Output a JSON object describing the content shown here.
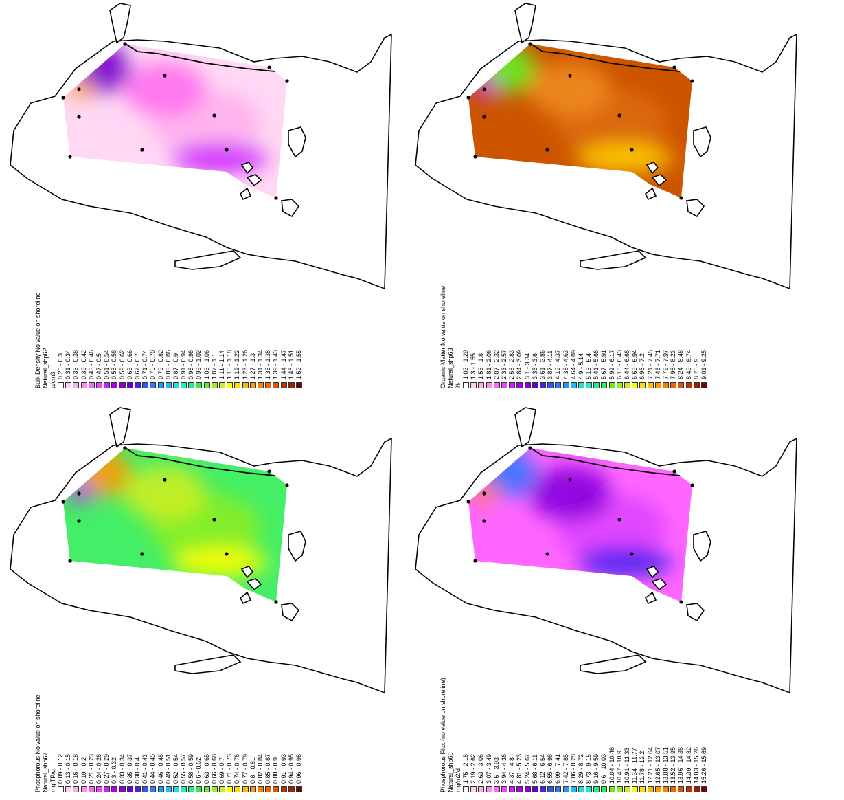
{
  "panels": [
    {
      "id": "bulk-density",
      "legend_title": "Bulk Density No value on shoreline",
      "legend_layer": "Natural_shp62",
      "legend_unit": "g/cm3",
      "classes": [
        "0.26 - 0.3",
        "0.31 - 0.34",
        "0.35 - 0.38",
        "0.39 - 0.42",
        "0.43 - 0.46",
        "0.47 - 0.5",
        "0.51 - 0.54",
        "0.55 - 0.58",
        "0.59 - 0.62",
        "0.63 - 0.66",
        "0.67 - 0.7",
        "0.71 - 0.74",
        "0.75 - 0.78",
        "0.79 - 0.82",
        "0.83 - 0.86",
        "0.87 - 0.9",
        "0.91 - 0.94",
        "0.95 - 0.98",
        "0.99 - 1.02",
        "1.03 - 1.06",
        "1.07 - 1.1",
        "1.11 - 1.14",
        "1.15 - 1.18",
        "1.19 - 1.22",
        "1.23 - 1.26",
        "1.27 - 1.3",
        "1.31 - 1.34",
        "1.35 - 1.38",
        "1.39 - 1.43",
        "1.44 - 1.47",
        "1.48 - 1.51",
        "1.52 - 1.55"
      ],
      "colors": [
        "#ffffff",
        "#ffd0f0",
        "#ffb0ec",
        "#ff90e8",
        "#ff66ff",
        "#ee44ff",
        "#cc22ff",
        "#aa00ee",
        "#8800dd",
        "#6600cc",
        "#4422ee",
        "#3355ff",
        "#3377ff",
        "#2299ff",
        "#22bbff",
        "#22dddd",
        "#22eebb",
        "#22ee88",
        "#33ee44",
        "#66ee22",
        "#99ee22",
        "#ccee22",
        "#ffff00",
        "#ffdd00",
        "#ffbb00",
        "#ff9900",
        "#ff8000",
        "#ee6600",
        "#dd5500",
        "#bb3300",
        "#992200",
        "#770000"
      ],
      "fill_colors": [
        "#ffd8f4",
        "#ffb0ec",
        "#ff70ee",
        "#cc22ff",
        "#7700cc",
        "#ff9933"
      ]
    },
    {
      "id": "organic-matter",
      "legend_title": "Organic Matter No value on shoreline",
      "legend_layer": "Natural_shp63",
      "legend_unit": "%",
      "classes": [
        "1.03 - 1.29",
        "1.3 - 1.55",
        "1.56 - 1.8",
        "1.81 - 2.06",
        "2.07 - 2.32",
        "2.33 - 2.57",
        "2.58 - 2.83",
        "2.84 - 3.09",
        "3.1 - 3.34",
        "3.35 - 3.6",
        "3.61 - 3.86",
        "3.87 - 4.11",
        "4.12 - 4.37",
        "4.38 - 4.63",
        "4.64 - 4.89",
        "4.9 - 5.14",
        "5.15 - 5.4",
        "5.41 - 5.66",
        "5.67 - 5.91",
        "5.92 - 6.17",
        "6.18 - 6.43",
        "6.44 - 6.68",
        "6.69 - 6.94",
        "6.95 - 7.2",
        "7.21 - 7.45",
        "7.46 - 7.71",
        "7.72 - 7.97",
        "7.98 - 8.23",
        "8.24 - 8.48",
        "8.49 - 8.74",
        "8.75 - 9",
        "9.01 - 9.25"
      ],
      "colors": [
        "#ffffff",
        "#ffd0f0",
        "#ffb0ec",
        "#ff90e8",
        "#ff66ff",
        "#ee44ff",
        "#cc22ff",
        "#aa00ee",
        "#8800dd",
        "#6600cc",
        "#4422ee",
        "#3355ff",
        "#3377ff",
        "#2299ff",
        "#22bbff",
        "#22dddd",
        "#22eebb",
        "#22ee88",
        "#33ee44",
        "#66ee22",
        "#99ee22",
        "#ccee22",
        "#ffff00",
        "#ffdd00",
        "#ffbb00",
        "#ff9900",
        "#ff8000",
        "#ee6600",
        "#dd5500",
        "#bb3300",
        "#992200",
        "#770000"
      ],
      "fill_colors": [
        "#cc5500",
        "#dd6a10",
        "#ee8a20",
        "#ffcc00",
        "#66ee22",
        "#cc22ff"
      ]
    },
    {
      "id": "phosphorous",
      "legend_title": "Phosphorous No value on shoreline",
      "legend_layer": "Natural_shp67",
      "legend_unit": "mg TP/g",
      "classes": [
        "0.09 - 0.12",
        "0.13 - 0.15",
        "0.16 - 0.18",
        "0.19 - 0.2",
        "0.21 - 0.23",
        "0.24 - 0.26",
        "0.27 - 0.29",
        "0.3 - 0.32",
        "0.33 - 0.34",
        "0.35 - 0.37",
        "0.38 - 0.4",
        "0.41 - 0.43",
        "0.44 - 0.45",
        "0.46 - 0.48",
        "0.49 - 0.51",
        "0.52 - 0.54",
        "0.55 - 0.57",
        "0.58 - 0.59",
        "0.6 - 0.62",
        "0.63 - 0.65",
        "0.66 - 0.68",
        "0.69 - 0.7",
        "0.71 - 0.73",
        "0.74 - 0.76",
        "0.77 - 0.79",
        "0.8 - 0.81",
        "0.82 - 0.84",
        "0.85 - 0.87",
        "0.88 - 0.9",
        "0.91 - 0.93",
        "0.94 - 0.95",
        "0.96 - 0.98"
      ],
      "colors": [
        "#ffffff",
        "#ffd0f0",
        "#ffb0ec",
        "#ff90e8",
        "#ff66ff",
        "#ee44ff",
        "#cc22ff",
        "#aa00ee",
        "#8800dd",
        "#6600cc",
        "#4422ee",
        "#3355ff",
        "#3377ff",
        "#2299ff",
        "#22bbff",
        "#22dddd",
        "#22eebb",
        "#22ee88",
        "#33ee44",
        "#66ee22",
        "#99ee22",
        "#ccee22",
        "#ffff00",
        "#ffdd00",
        "#ffbb00",
        "#ff9900",
        "#ff8000",
        "#ee6600",
        "#dd5500",
        "#bb3300",
        "#992200",
        "#770000"
      ],
      "fill_colors": [
        "#44ee66",
        "#88ee22",
        "#ccee22",
        "#ffff00",
        "#ff9900",
        "#cc22ff"
      ]
    },
    {
      "id": "phosphorous-flux",
      "legend_title": "Phosphorous Flux (no value on shoreline)",
      "legend_layer": "Natural_shp68",
      "legend_unit": "mg/m2/d",
      "classes": [
        "1.75 - 2.18",
        "2.19 - 2.62",
        "2.63 - 3.06",
        "3.07 - 3.49",
        "3.5 - 3.93",
        "3.94 - 4.36",
        "4.37 - 4.8",
        "4.81 - 5.23",
        "5.24 - 5.67",
        "5.68 - 6.11",
        "6.12 - 6.54",
        "6.55 - 6.98",
        "6.99 - 7.41",
        "7.42 - 7.85",
        "7.86 - 8.28",
        "8.29 - 8.72",
        "8.73 - 9.15",
        "9.16 - 9.59",
        "9.6 - 10.03",
        "10.04 - 10.46",
        "10.47 - 10.9",
        "10.91 - 11.33",
        "11.34 - 11.77",
        "11.78 - 12.2",
        "12.21 - 12.64",
        "12.65 - 13.07",
        "13.08 - 13.51",
        "13.52 - 13.95",
        "13.96 - 14.38",
        "14.39 - 14.82",
        "14.83 - 15.26",
        "15.26 - 15.69"
      ],
      "colors": [
        "#ffffff",
        "#ffd0f0",
        "#ffb0ec",
        "#ff90e8",
        "#ff66ff",
        "#ee44ff",
        "#cc22ff",
        "#aa00ee",
        "#8800dd",
        "#6600cc",
        "#4422ee",
        "#3355ff",
        "#3377ff",
        "#2299ff",
        "#22bbff",
        "#22dddd",
        "#22eebb",
        "#22ee88",
        "#33ee44",
        "#66ee22",
        "#99ee22",
        "#ccee22",
        "#ffff00",
        "#ffdd00",
        "#ffbb00",
        "#ff9900",
        "#ff8000",
        "#ee6600",
        "#dd5500",
        "#bb3300",
        "#992200",
        "#770000"
      ],
      "fill_colors": [
        "#ff66ff",
        "#dd44ff",
        "#8800dd",
        "#4422ee",
        "#3377ff",
        "#ff8000"
      ]
    }
  ]
}
